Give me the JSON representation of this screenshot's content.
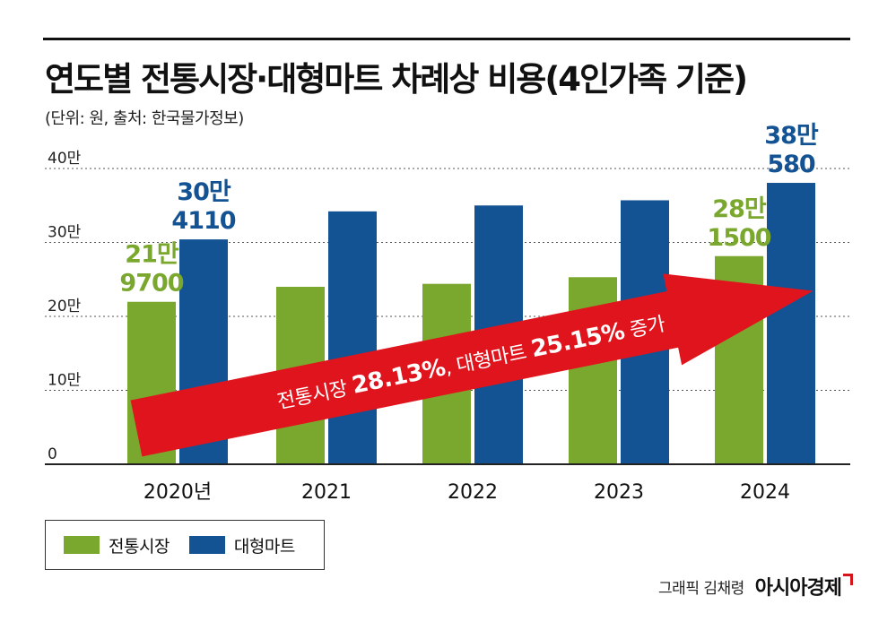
{
  "header": {
    "title": "연도별 전통시장·대형마트 차례상 비용(4인가족 기준)",
    "subtitle": "(단위: 원, 출처: 한국물가정보)"
  },
  "chart_data": {
    "type": "bar",
    "categories": [
      "2020년",
      "2021",
      "2022",
      "2023",
      "2024"
    ],
    "series": [
      {
        "name": "전통시장",
        "color": "#7aa82e",
        "values": [
          219700,
          240000,
          244000,
          253000,
          281500
        ]
      },
      {
        "name": "대형마트",
        "color": "#135394",
        "values": [
          304110,
          342000,
          350000,
          357000,
          380580
        ]
      }
    ],
    "ylim": [
      0,
      400000
    ],
    "yticks": [
      {
        "value": 0,
        "label": "0"
      },
      {
        "value": 100000,
        "label": "10만"
      },
      {
        "value": 200000,
        "label": "20만"
      },
      {
        "value": 300000,
        "label": "30만"
      },
      {
        "value": 400000,
        "label": "40만"
      }
    ],
    "grid": "dotted-horizontal",
    "legend_position": "bottom-left",
    "data_labels": [
      {
        "series": 0,
        "index": 0,
        "lines": [
          "21만",
          "9700"
        ]
      },
      {
        "series": 1,
        "index": 0,
        "lines": [
          "30만",
          "4110"
        ]
      },
      {
        "series": 0,
        "index": 4,
        "lines": [
          "28만",
          "1500"
        ]
      },
      {
        "series": 1,
        "index": 4,
        "lines": [
          "38만",
          "580"
        ]
      }
    ],
    "annotation": {
      "parts": [
        {
          "text": "전통시장 ",
          "bold": false
        },
        {
          "text": "28.13%",
          "bold": true
        },
        {
          "text": ", 대형마트 ",
          "bold": false
        },
        {
          "text": "25.15%",
          "bold": true
        },
        {
          "text": " 증가",
          "bold": false
        }
      ],
      "color": "#e0141c"
    }
  },
  "legend": {
    "items": [
      {
        "label": "전통시장",
        "color": "#7aa82e"
      },
      {
        "label": "대형마트",
        "color": "#135394"
      }
    ]
  },
  "credit": {
    "text": "그래픽 김채령",
    "logo": "아시아경제"
  }
}
